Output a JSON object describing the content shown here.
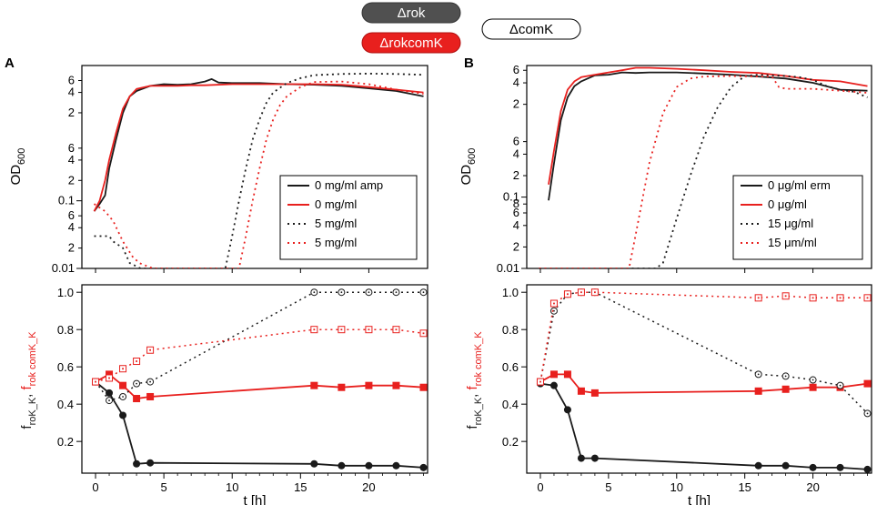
{
  "legend_header": {
    "rok": {
      "label": "Δrok",
      "fill": "#505050",
      "text_color": "#ffffff"
    },
    "rokcomK": {
      "label": "ΔrokcomK",
      "fill": "#e8201e",
      "text_color": "#ffffff"
    },
    "comK": {
      "label": "ΔcomK",
      "fill": "#ffffff",
      "text_color": "#000000"
    }
  },
  "colors": {
    "black": "#1a1a1a",
    "red": "#e8201e",
    "axis": "#000000"
  },
  "chart_data": [
    {
      "panel": "A",
      "type": "line",
      "top": {
        "yscale": "log",
        "ylabel_main": "OD",
        "ylabel_sub": "600",
        "xlim": [
          -1,
          24.3
        ],
        "ylim": [
          0.01,
          10
        ],
        "yticks": [
          0.01,
          0.02,
          0.04,
          0.06,
          0.1,
          0.2,
          0.4,
          0.6,
          2,
          4,
          6
        ],
        "ytick_labels": [
          "0.01",
          "2",
          "4",
          "6",
          "0.1",
          "2",
          "4",
          "6",
          "2",
          "4",
          "6"
        ],
        "legend": [
          {
            "label": "0 mg/ml amp",
            "color": "black",
            "dash": "solid"
          },
          {
            "label": "0 mg/ml",
            "color": "red",
            "dash": "solid"
          },
          {
            "label": "5 mg/ml",
            "color": "black",
            "dash": "dot"
          },
          {
            "label": "5 mg/ml",
            "color": "red",
            "dash": "dot"
          }
        ],
        "series": [
          {
            "name": "Δrok 0 mg/ml amp",
            "color": "black",
            "dash": "solid",
            "x": [
              -0.1,
              0.3,
              0.7,
              1.0,
              1.5,
              2.0,
              2.5,
              3.0,
              4.0,
              5.0,
              6.0,
              7.0,
              8.0,
              8.5,
              9.0,
              10.0,
              12.0,
              14.0,
              16.0,
              18.0,
              20.0,
              22.0,
              24.0
            ],
            "y": [
              0.07,
              0.09,
              0.12,
              0.3,
              0.8,
              2.0,
              3.5,
              4.2,
              5.0,
              5.3,
              5.2,
              5.3,
              5.8,
              6.3,
              5.6,
              5.5,
              5.5,
              5.3,
              5.2,
              5.0,
              4.6,
              4.2,
              3.5
            ]
          },
          {
            "name": "ΔrokcomK 0 mg/ml",
            "color": "red",
            "dash": "solid",
            "x": [
              -0.1,
              0.3,
              0.7,
              1.0,
              1.5,
              2.0,
              2.5,
              3.0,
              4.0,
              5.0,
              6.0,
              7.0,
              8.0,
              10.0,
              12.0,
              14.0,
              16.0,
              18.0,
              20.0,
              22.0,
              24.0
            ],
            "y": [
              0.07,
              0.1,
              0.2,
              0.4,
              1.0,
              2.3,
              3.5,
              4.5,
              5.0,
              5.0,
              5.0,
              5.1,
              5.1,
              5.3,
              5.3,
              5.3,
              5.3,
              5.2,
              4.8,
              4.4,
              4.0
            ]
          },
          {
            "name": "Δrok 5 mg/ml",
            "color": "black",
            "dash": "dot",
            "x": [
              -0.1,
              1.0,
              1.3,
              2.0,
              2.5,
              3.3,
              9.5,
              10.0,
              10.5,
              11.0,
              11.5,
              12.0,
              12.5,
              13.0,
              14.0,
              15.0,
              16.0,
              18.0,
              20.0,
              22.0,
              24.0
            ],
            "y": [
              0.03,
              0.03,
              0.025,
              0.02,
              0.012,
              0.01,
              0.01,
              0.03,
              0.1,
              0.3,
              0.8,
              1.6,
              2.8,
              4.0,
              5.5,
              6.5,
              7.2,
              7.5,
              7.6,
              7.5,
              7.3
            ]
          },
          {
            "name": "ΔrokcomK 5 mg/ml",
            "color": "red",
            "dash": "dot",
            "x": [
              -0.1,
              0.7,
              1.3,
              2.0,
              2.7,
              3.2,
              4.2,
              10.5,
              11.0,
              11.5,
              12.0,
              12.5,
              13.0,
              13.5,
              14.0,
              15.0,
              16.0,
              18.0,
              20.0,
              22.0,
              24.0
            ],
            "y": [
              0.09,
              0.07,
              0.05,
              0.025,
              0.015,
              0.012,
              0.01,
              0.01,
              0.03,
              0.1,
              0.3,
              0.8,
              1.6,
              2.6,
              3.5,
              4.8,
              5.7,
              5.8,
              5.3,
              4.4,
              3.8
            ]
          }
        ]
      },
      "bottom": {
        "ylabel_main": "f",
        "ylabel_sub_black": "roK_K",
        "ylabel_sep": ", ",
        "ylabel_main_red": "f",
        "ylabel_sub_red": "rok comK_K",
        "xlabel": "t [h]",
        "xlim": [
          -1,
          24.3
        ],
        "ylim": [
          0.03,
          1.04
        ],
        "xticks": [
          0,
          5,
          10,
          15,
          20
        ],
        "xtick_labels": [
          "0",
          "5",
          "10",
          "15",
          "20"
        ],
        "yticks": [
          0.2,
          0.4,
          0.6,
          0.8,
          1.0
        ],
        "ytick_labels": [
          "0.2",
          "0.4",
          "0.6",
          "0.8",
          "1.0"
        ],
        "series": [
          {
            "name": "Δrok",
            "color": "black",
            "dash": "solid",
            "marker": "filled-circle",
            "x": [
              0,
              1,
              2,
              3,
              4,
              16,
              18,
              20,
              22,
              24
            ],
            "y": [
              0.52,
              0.46,
              0.34,
              0.08,
              0.085,
              0.08,
              0.07,
              0.07,
              0.07,
              0.06
            ]
          },
          {
            "name": "ΔrokcomK",
            "color": "red",
            "dash": "solid",
            "marker": "filled-square",
            "x": [
              0,
              1,
              2,
              3,
              4,
              16,
              18,
              20,
              22,
              24
            ],
            "y": [
              0.52,
              0.56,
              0.5,
              0.43,
              0.44,
              0.5,
              0.49,
              0.5,
              0.5,
              0.49
            ]
          },
          {
            "name": "Δrok 5 mg/ml",
            "color": "black",
            "dash": "dot",
            "marker": "open-circle",
            "x": [
              0,
              1,
              2,
              3,
              4,
              16,
              18,
              20,
              22,
              24
            ],
            "y": [
              0.52,
              0.42,
              0.44,
              0.51,
              0.52,
              1.0,
              1.0,
              1.0,
              1.0,
              1.0
            ]
          },
          {
            "name": "ΔrokcomK 5 mg/ml",
            "color": "red",
            "dash": "dot",
            "marker": "open-square",
            "x": [
              0,
              1,
              2,
              3,
              4,
              16,
              18,
              20,
              22,
              24
            ],
            "y": [
              0.52,
              0.54,
              0.59,
              0.63,
              0.69,
              0.8,
              0.8,
              0.8,
              0.8,
              0.78
            ]
          }
        ]
      }
    },
    {
      "panel": "B",
      "type": "line",
      "top": {
        "yscale": "log",
        "ylabel_main": "OD",
        "ylabel_sub": "600",
        "xlim": [
          -1,
          24.3
        ],
        "ylim": [
          0.01,
          7
        ],
        "yticks": [
          0.01,
          0.02,
          0.04,
          0.06,
          0.08,
          0.1,
          0.2,
          0.4,
          0.6,
          2,
          4,
          6
        ],
        "ytick_labels": [
          "0.01",
          "2",
          "4",
          "6",
          "8",
          "0.1",
          "2",
          "4",
          "6",
          "2",
          "4",
          "6"
        ],
        "legend": [
          {
            "label": "0 μg/ml erm",
            "color": "black",
            "dash": "solid"
          },
          {
            "label": "0 μg/ml",
            "color": "red",
            "dash": "solid"
          },
          {
            "label": "15 μg/ml",
            "color": "black",
            "dash": "dot"
          },
          {
            "label": "15 μm/ml",
            "color": "red",
            "dash": "dot"
          }
        ],
        "series": [
          {
            "name": "Δrok 0 μg/ml erm",
            "color": "black",
            "dash": "solid",
            "x": [
              0.6,
              1.0,
              1.5,
              2.0,
              2.5,
              3.0,
              4.0,
              5.0,
              6.0,
              7.0,
              8.0,
              10.0,
              12.0,
              14.0,
              16.0,
              18.0,
              20.0,
              22.0,
              24.0
            ],
            "y": [
              0.09,
              0.3,
              1.2,
              2.5,
              3.6,
              4.2,
              5.1,
              5.2,
              5.6,
              5.5,
              5.6,
              5.6,
              5.4,
              5.2,
              4.9,
              4.6,
              4.0,
              3.2,
              3.1
            ]
          },
          {
            "name": "ΔrokcomK 0 μg/ml",
            "color": "red",
            "dash": "solid",
            "x": [
              0.6,
              1.0,
              1.5,
              2.0,
              2.5,
              3.0,
              4.0,
              5.0,
              6.0,
              7.0,
              8.0,
              10.0,
              12.0,
              14.0,
              16.0,
              18.0,
              20.0,
              22.0,
              24.0
            ],
            "y": [
              0.15,
              0.45,
              1.6,
              3.2,
              4.2,
              4.8,
              5.2,
              5.6,
              6.0,
              6.5,
              6.5,
              6.3,
              6.0,
              5.7,
              5.5,
              5.0,
              4.4,
              4.2,
              3.6
            ]
          },
          {
            "name": "Δrok 15 μg/ml",
            "color": "black",
            "dash": "dot",
            "x": [
              -0.1,
              8.5,
              9.0,
              10.0,
              11.0,
              12.0,
              13.0,
              14.0,
              15.0,
              16.0,
              17.0,
              18.0,
              19.0,
              20.0,
              21.0,
              22.0,
              23.0,
              24.0
            ],
            "y": [
              0.01,
              0.01,
              0.012,
              0.05,
              0.2,
              0.7,
              1.8,
              3.5,
              5.0,
              5.2,
              5.1,
              5.0,
              4.8,
              4.4,
              3.6,
              3.2,
              3.0,
              2.5
            ]
          },
          {
            "name": "ΔrokcomK 15 μm/ml",
            "color": "red",
            "dash": "dot",
            "x": [
              -0.1,
              6.5,
              7.0,
              8.0,
              9.0,
              10.0,
              11.0,
              12.0,
              14.0,
              16.0,
              17.0,
              17.5,
              18.0,
              20.0,
              22.0,
              24.0
            ],
            "y": [
              0.01,
              0.01,
              0.03,
              0.3,
              1.5,
              3.5,
              4.6,
              4.9,
              5.0,
              4.9,
              4.9,
              3.5,
              3.3,
              3.3,
              3.1,
              2.9
            ]
          }
        ]
      },
      "bottom": {
        "ylabel_main": "f",
        "ylabel_sub_black": "roK_K",
        "ylabel_sep": ", ",
        "ylabel_main_red": "f",
        "ylabel_sub_red": "rok comK_K",
        "xlabel": "t [h]",
        "xlim": [
          -1,
          24.3
        ],
        "ylim": [
          0.03,
          1.04
        ],
        "xticks": [
          0,
          5,
          10,
          15,
          20
        ],
        "xtick_labels": [
          "0",
          "5",
          "10",
          "15",
          "20"
        ],
        "yticks": [
          0.2,
          0.4,
          0.6,
          0.8,
          1.0
        ],
        "ytick_labels": [
          "0.2",
          "0.4",
          "0.6",
          "0.8",
          "1.0"
        ],
        "series": [
          {
            "name": "Δrok",
            "color": "black",
            "dash": "solid",
            "marker": "filled-circle",
            "x": [
              0,
              1,
              2,
              3,
              4,
              16,
              18,
              20,
              22,
              24
            ],
            "y": [
              0.51,
              0.5,
              0.37,
              0.11,
              0.11,
              0.07,
              0.07,
              0.06,
              0.06,
              0.05
            ]
          },
          {
            "name": "ΔrokcomK",
            "color": "red",
            "dash": "solid",
            "marker": "filled-square",
            "x": [
              0,
              1,
              2,
              3,
              4,
              16,
              18,
              20,
              22,
              24
            ],
            "y": [
              0.52,
              0.56,
              0.56,
              0.47,
              0.46,
              0.47,
              0.48,
              0.49,
              0.49,
              0.51
            ]
          },
          {
            "name": "Δrok 15 μg/ml",
            "color": "black",
            "dash": "dot",
            "marker": "open-circle",
            "x": [
              0,
              1,
              2,
              3,
              4,
              16,
              18,
              20,
              22,
              24
            ],
            "y": [
              0.52,
              0.9,
              0.99,
              1.0,
              1.0,
              0.56,
              0.55,
              0.53,
              0.5,
              0.35
            ]
          },
          {
            "name": "ΔrokcomK 15 μm/ml",
            "color": "red",
            "dash": "dot",
            "marker": "open-square",
            "x": [
              0,
              1,
              2,
              3,
              4,
              16,
              18,
              20,
              22,
              24
            ],
            "y": [
              0.52,
              0.94,
              0.99,
              1.0,
              1.0,
              0.97,
              0.98,
              0.97,
              0.97,
              0.97
            ]
          }
        ]
      }
    }
  ]
}
